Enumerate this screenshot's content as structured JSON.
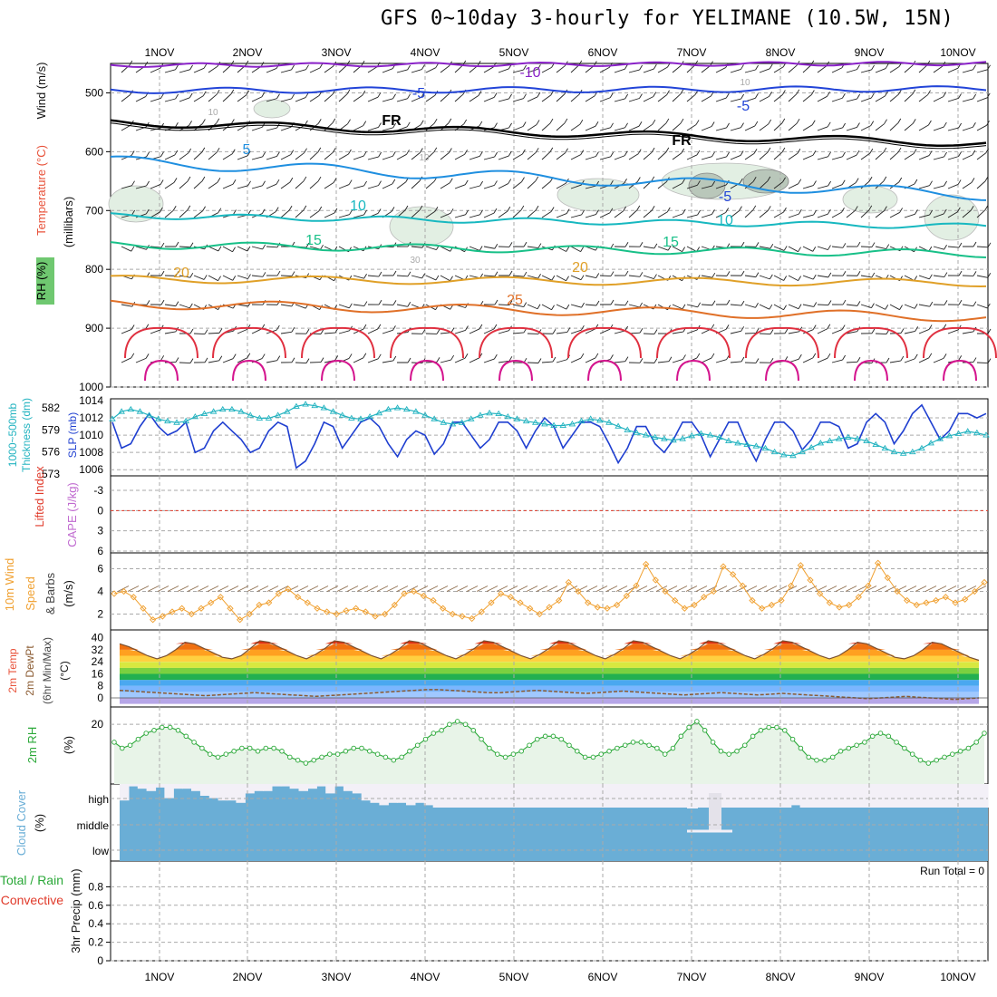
{
  "title": "GFS 0~10day 3-hourly for YELIMANE (10.5W, 15N)",
  "colors": {
    "temp_label": "#e8523a",
    "wind_label": "#111111",
    "rh_label": "#2aa838",
    "thick": "#22b3c0",
    "slp": "#1f3fd0",
    "li": "#e03a2a",
    "cape": "#c06ad0",
    "wind10": "#f0a030",
    "dew": "#8a5a30",
    "rh2": "#2aa838",
    "cloud": "#6aaed6",
    "rain": "#2aa838",
    "conv": "#e03a2a"
  },
  "panel_labels": {
    "p1": [
      "Temperature (°C)",
      "Wind (m/s)",
      "(millibars)",
      "RH (%)"
    ],
    "p2": [
      "1000~500mb",
      "Thickness (dm)",
      "SLP (mb)"
    ],
    "p3": [
      "Lifted Index",
      "CAPE (J/kg)"
    ],
    "p4": [
      "10m Wind",
      "Speed",
      "& Barbs",
      "(m/s)"
    ],
    "p5": [
      "2m Temp",
      "2m DewPt",
      "(6hr Min/Max)",
      "(°C)"
    ],
    "p6": [
      "2m RH",
      "(%)"
    ],
    "p7": [
      "Cloud Cover",
      "(%)"
    ],
    "p8": [
      "Total / Rain",
      "Convective",
      "3hr Precip (mm)"
    ]
  },
  "run_total": "Run Total = 0",
  "chart_data": [
    {
      "type": "line",
      "name": "upper-air",
      "x_labels": [
        "1NOV",
        "2NOV",
        "3NOV",
        "4NOV",
        "5NOV",
        "6NOV",
        "7NOV",
        "8NOV",
        "9NOV",
        "10NOV"
      ],
      "yticks": [
        "500",
        "600",
        "700",
        "800",
        "900",
        "1000"
      ],
      "contour_labels": [
        "-10",
        "-5",
        "-5",
        "FR",
        "FR",
        "-5",
        "5",
        "10",
        "10",
        "15",
        "15",
        "20",
        "20",
        "25",
        "10",
        "10",
        "30",
        "10"
      ],
      "ylim": [
        450,
        1000
      ]
    },
    {
      "type": "line",
      "name": "slp-thickness",
      "yticks_left": [
        "582",
        "579",
        "576",
        "573"
      ],
      "yticks_right": [
        "1014",
        "1012",
        "1010",
        "1008",
        "1006"
      ],
      "slp": [
        1011.5,
        1008.5,
        1009,
        1011,
        1012.5,
        1011,
        1010,
        1010.5,
        1011.5,
        1008,
        1008.5,
        1010.5,
        1011.5,
        1010.5,
        1009.5,
        1008,
        1008.5,
        1010.5,
        1011.5,
        1011,
        1006.2,
        1007,
        1009,
        1011.5,
        1011,
        1008.5,
        1010,
        1011.5,
        1012,
        1011,
        1009,
        1007.5,
        1009.5,
        1010.5,
        1010,
        1007.8,
        1009,
        1011.5,
        1011.5,
        1010,
        1008.5,
        1009.5,
        1011.5,
        1011.5,
        1010.5,
        1008.5,
        1010.5,
        1012,
        1011,
        1008.5,
        1010,
        1011.5,
        1011.5,
        1011,
        1009,
        1006.8,
        1008.5,
        1011,
        1011,
        1009,
        1008,
        1009.5,
        1011.5,
        1011.5,
        1010,
        1007.5,
        1009.5,
        1011.5,
        1011.5,
        1009,
        1007,
        1009.5,
        1011.5,
        1011.5,
        1010.5,
        1008.3,
        1009.5,
        1011.5,
        1011.5,
        1011,
        1008.5,
        1009,
        1011.5,
        1012.5,
        1011.5,
        1009,
        1010.5,
        1012.5,
        1013.5,
        1011.5,
        1009.5,
        1010.5,
        1012.5,
        1012.5,
        1012,
        1012.5
      ],
      "thickness": [
        580.5,
        581.5,
        581.8,
        581.5,
        581.0,
        580.5,
        580.2,
        580.0,
        580.2,
        580.8,
        581.2,
        581.5,
        581.8,
        581.8,
        581.5,
        581.0,
        580.6,
        580.6,
        581.0,
        581.5,
        582.2,
        582.5,
        582.3,
        582.0,
        581.5,
        581.0,
        580.6,
        580.5,
        580.8,
        581.3,
        581.8,
        582.0,
        581.8,
        581.5,
        581.0,
        580.5,
        580.0,
        579.8,
        580.0,
        580.5,
        581.0,
        581.3,
        581.2,
        580.8,
        580.5,
        580.2,
        580.0,
        579.8,
        579.6,
        579.6,
        579.8,
        580.2,
        580.5,
        580.3,
        580.0,
        579.5,
        579.0,
        578.6,
        578.3,
        578.0,
        577.8,
        577.6,
        577.8,
        578.2,
        578.5,
        578.3,
        578.0,
        577.5,
        577.2,
        577.0,
        576.8,
        576.5,
        576.0,
        575.6,
        575.5,
        576.0,
        576.6,
        577.2,
        577.5,
        577.8,
        578.0,
        577.8,
        577.5,
        577.0,
        576.5,
        576.0,
        575.8,
        576.0,
        576.5,
        577.2,
        577.8,
        578.2,
        578.5,
        578.8,
        578.6,
        578.3
      ]
    },
    {
      "type": "line",
      "name": "lifted-index-cape",
      "yticks": [
        "-3",
        "0",
        "3",
        "6"
      ],
      "li_zero_line": 0
    },
    {
      "type": "line",
      "name": "10m-wind",
      "yticks": [
        "2",
        "4",
        "6"
      ],
      "speed": [
        3.8,
        4.0,
        3.5,
        2.5,
        1.5,
        1.8,
        2.2,
        2.5,
        2.0,
        2.5,
        3.0,
        3.5,
        2.5,
        1.5,
        2.0,
        2.8,
        3.0,
        3.8,
        4.2,
        3.5,
        3.0,
        2.5,
        2.2,
        2.0,
        2.3,
        2.5,
        2.2,
        1.8,
        2.0,
        2.8,
        3.8,
        4.0,
        3.6,
        3.2,
        2.5,
        2.0,
        1.8,
        1.6,
        2.2,
        3.0,
        3.8,
        3.5,
        3.0,
        2.5,
        2.0,
        2.6,
        3.2,
        4.8,
        4.0,
        3.0,
        2.6,
        2.5,
        2.8,
        3.6,
        4.5,
        6.4,
        5.0,
        4.0,
        3.2,
        2.5,
        2.8,
        3.5,
        4.0,
        6.2,
        5.5,
        4.5,
        3.2,
        2.5,
        2.8,
        3.2,
        4.5,
        6.3,
        5.0,
        3.8,
        3.0,
        2.6,
        2.8,
        3.5,
        4.5,
        6.5,
        5.2,
        4.0,
        3.2,
        2.8,
        3.0,
        3.2,
        3.5,
        3.0,
        3.3,
        4.0,
        4.8
      ]
    },
    {
      "type": "area",
      "name": "2m-temp-dewpt",
      "yticks": [
        "40",
        "32",
        "24",
        "16",
        "8",
        "0"
      ],
      "temp_max_series": [
        36,
        34,
        31,
        28,
        26,
        28,
        32,
        37,
        36,
        33,
        30,
        27,
        26,
        28,
        33,
        38,
        37,
        34,
        31,
        28,
        26,
        29,
        33,
        38,
        37,
        34,
        31,
        28,
        26,
        29,
        33,
        38,
        37,
        34,
        31,
        28,
        26,
        29,
        33,
        38,
        37,
        34,
        31,
        28,
        26,
        29,
        33,
        38,
        37,
        34,
        31,
        28,
        26,
        29,
        33,
        38,
        37,
        34,
        31,
        28,
        26,
        29,
        33,
        38,
        37,
        34,
        31,
        28,
        26,
        29,
        33,
        38,
        37,
        34,
        31,
        28,
        26,
        28,
        32,
        37,
        36,
        33,
        30,
        27,
        26,
        28,
        32,
        37,
        36,
        33,
        30,
        27,
        25
      ],
      "dewpoint_series": [
        5,
        4.5,
        4,
        3.5,
        3,
        2.5,
        2,
        1.5,
        2,
        2.5,
        3,
        3.5,
        3,
        2.5,
        2,
        1.5,
        1,
        1.5,
        2,
        2.5,
        3,
        3.5,
        4,
        4.5,
        5,
        5.5,
        5.5,
        5,
        4.5,
        4,
        3.5,
        3.5,
        4,
        4.5,
        5,
        4.5,
        4,
        3.5,
        3,
        3.5,
        4,
        4.5,
        4,
        3.5,
        3,
        2.5,
        2,
        2.5,
        3,
        3.5,
        3,
        2.5,
        2,
        2.5,
        3,
        2.5,
        2,
        1.5,
        1,
        0.5,
        0,
        -0.5,
        0,
        0.5,
        1,
        0.5,
        0,
        -0.5,
        -1,
        -0.5,
        0
      ]
    },
    {
      "type": "line",
      "name": "2m-rh",
      "yticks": [
        "20"
      ],
      "rh": [
        14,
        12,
        13,
        15,
        17,
        18,
        19,
        19,
        18,
        16,
        14,
        12,
        10,
        9,
        10,
        11,
        12,
        12,
        11,
        12,
        12,
        11,
        9,
        8,
        7,
        8,
        9,
        10,
        10,
        11,
        12,
        12,
        11,
        10,
        9,
        8,
        9,
        11,
        13,
        15,
        17,
        18,
        20,
        21,
        20,
        18,
        15,
        12,
        10,
        9,
        10,
        11,
        13,
        15,
        16,
        16,
        15,
        13,
        11,
        9,
        9,
        10,
        11,
        12,
        13,
        14,
        14,
        13,
        12,
        10,
        12,
        16,
        19,
        21,
        18,
        14,
        11,
        10,
        11,
        13,
        16,
        18,
        19,
        19,
        18,
        15,
        12,
        9,
        8,
        8,
        9,
        11,
        12,
        13,
        14,
        16,
        17,
        16,
        14,
        12,
        10,
        8,
        7,
        8,
        9,
        10,
        11,
        12,
        14,
        17
      ]
    },
    {
      "type": "bar",
      "name": "cloud-cover",
      "levels": [
        "high",
        "middle",
        "low"
      ],
      "high_cover_values": [
        0.3,
        0.9,
        0.8,
        0.7,
        0.85,
        0.4,
        0.8,
        0.8,
        0.7,
        0.5,
        0.4,
        0.3,
        0.3,
        0.2,
        0.6,
        0.7,
        0.7,
        0.9,
        0.9,
        0.8,
        0.7,
        0.8,
        0.9,
        0.6,
        0.9,
        0.7,
        0.6,
        0.3,
        0.2,
        0.1,
        0.2,
        0.2,
        0.1,
        0.2,
        0.1,
        0,
        0,
        0,
        0,
        0,
        0,
        0,
        0,
        0,
        0,
        0,
        0,
        0,
        0,
        0,
        0,
        0,
        0,
        0,
        0,
        0,
        0,
        0,
        0,
        0,
        0,
        0,
        0,
        0,
        0,
        0,
        0,
        0,
        0,
        0,
        0,
        0,
        0,
        0,
        0,
        0.1,
        0,
        0,
        0,
        0,
        0,
        0,
        0,
        0,
        0,
        0,
        0,
        0,
        0,
        0,
        0,
        0,
        0,
        0,
        0,
        0,
        0
      ]
    },
    {
      "type": "line",
      "name": "3hr-precip",
      "yticks": [
        "0.8",
        "0.6",
        "0.4",
        "0.2",
        "0"
      ],
      "ylim": [
        0,
        1.0
      ]
    }
  ]
}
